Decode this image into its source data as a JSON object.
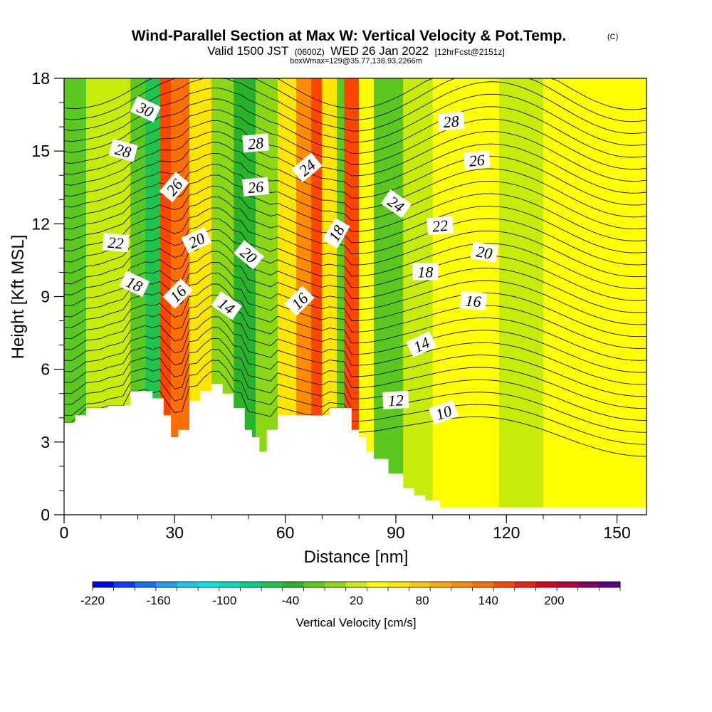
{
  "title": {
    "main": "Wind-Parallel Section at Max W: Vertical Velocity & Pot.Temp.",
    "copyright": "(C)",
    "valid_prefix": "Valid 1500 JST",
    "valid_zulu": "(0600Z)",
    "valid_date": "WED 26 Jan 2022",
    "forecast": "[12hrFcst@2151z]",
    "box": "boxWmax=129@35.77,138.93,2266m"
  },
  "colors": {
    "terrain": "#ffffff",
    "contour": "#111111",
    "background": "#ffffff"
  },
  "chart_data": {
    "type": "heatmap",
    "xlabel": "Distance [nm]",
    "ylabel": "Height [Kft MSL]",
    "xlim": [
      0,
      158
    ],
    "ylim": [
      0,
      18
    ],
    "x_ticks": [
      0,
      30,
      60,
      90,
      120,
      150
    ],
    "y_ticks": [
      0,
      3,
      6,
      9,
      12,
      15,
      18
    ],
    "colorbar": {
      "title": "Vertical Velocity [cm/s]",
      "tick_labels": [
        -220,
        -160,
        -100,
        -40,
        20,
        80,
        140,
        200
      ],
      "bins": [
        -220,
        -200,
        -180,
        -160,
        -140,
        -120,
        -100,
        -80,
        -60,
        -40,
        -20,
        0,
        20,
        40,
        60,
        80,
        100,
        120,
        140,
        160,
        180,
        200,
        220,
        240
      ],
      "colors": [
        "#0000ee",
        "#0a3cf0",
        "#1470f0",
        "#1ea0f0",
        "#14c8f0",
        "#00e6e6",
        "#00dcb4",
        "#00d28c",
        "#1ec350",
        "#28b428",
        "#5ac81e",
        "#8cd714",
        "#c8eb0a",
        "#ffff00",
        "#ffe600",
        "#ffc800",
        "#ffaa00",
        "#ff8c00",
        "#ff6e00",
        "#ff4600",
        "#f01e0a",
        "#d7001e",
        "#b4003c",
        "#820064",
        "#5a0082"
      ]
    },
    "vertical_velocity_bands_cm_s": [
      {
        "x": [
          0,
          6
        ],
        "w": -40
      },
      {
        "x": [
          6,
          18
        ],
        "w": 0
      },
      {
        "x": [
          18,
          22
        ],
        "w": -40
      },
      {
        "x": [
          22,
          26
        ],
        "w": -80
      },
      {
        "x": [
          26,
          29
        ],
        "w": 140
      },
      {
        "x": [
          29,
          34
        ],
        "w": 120
      },
      {
        "x": [
          34,
          40
        ],
        "w": 40
      },
      {
        "x": [
          40,
          46
        ],
        "w": -20
      },
      {
        "x": [
          46,
          52
        ],
        "w": -60
      },
      {
        "x": [
          52,
          58
        ],
        "w": -20
      },
      {
        "x": [
          58,
          63
        ],
        "w": 40
      },
      {
        "x": [
          63,
          67
        ],
        "w": 100
      },
      {
        "x": [
          67,
          70
        ],
        "w": 140
      },
      {
        "x": [
          70,
          74
        ],
        "w": 40
      },
      {
        "x": [
          74,
          76
        ],
        "w": -40
      },
      {
        "x": [
          76,
          80
        ],
        "w": 140
      },
      {
        "x": [
          80,
          84
        ],
        "w": 20
      },
      {
        "x": [
          84,
          92
        ],
        "w": -40
      },
      {
        "x": [
          92,
          100
        ],
        "w": 0
      },
      {
        "x": [
          100,
          118
        ],
        "w": 20
      },
      {
        "x": [
          118,
          130
        ],
        "w": 0
      },
      {
        "x": [
          130,
          158
        ],
        "w": 20
      }
    ],
    "terrain_kft": [
      {
        "x": 0,
        "h": 3.8
      },
      {
        "x": 3,
        "h": 4.1
      },
      {
        "x": 6,
        "h": 4.4
      },
      {
        "x": 12,
        "h": 4.5
      },
      {
        "x": 18,
        "h": 5.1
      },
      {
        "x": 24,
        "h": 4.8
      },
      {
        "x": 27,
        "h": 4.1
      },
      {
        "x": 29,
        "h": 3.2
      },
      {
        "x": 31,
        "h": 3.5
      },
      {
        "x": 34,
        "h": 4.7
      },
      {
        "x": 37,
        "h": 5.1
      },
      {
        "x": 40,
        "h": 5.4
      },
      {
        "x": 43,
        "h": 5.0
      },
      {
        "x": 46,
        "h": 4.4
      },
      {
        "x": 49,
        "h": 3.5
      },
      {
        "x": 51,
        "h": 3.2
      },
      {
        "x": 53,
        "h": 2.6
      },
      {
        "x": 55,
        "h": 3.5
      },
      {
        "x": 58,
        "h": 4.1
      },
      {
        "x": 68,
        "h": 4.1
      },
      {
        "x": 72,
        "h": 4.4
      },
      {
        "x": 76,
        "h": 4.4
      },
      {
        "x": 78,
        "h": 3.5
      },
      {
        "x": 80,
        "h": 3.2
      },
      {
        "x": 82,
        "h": 2.6
      },
      {
        "x": 84,
        "h": 2.3
      },
      {
        "x": 88,
        "h": 1.7
      },
      {
        "x": 92,
        "h": 1.1
      },
      {
        "x": 95,
        "h": 0.8
      },
      {
        "x": 98,
        "h": 0.6
      },
      {
        "x": 102,
        "h": 0.3
      },
      {
        "x": 158,
        "h": 0.3
      }
    ],
    "potential_temperature_contour_labels": [
      {
        "value": 30,
        "x": 22,
        "y": 16.7,
        "angle": 25
      },
      {
        "value": 28,
        "x": 16,
        "y": 15.0,
        "angle": 15
      },
      {
        "value": 22,
        "x": 14,
        "y": 11.2,
        "angle": 5
      },
      {
        "value": 18,
        "x": 19,
        "y": 9.5,
        "angle": 25
      },
      {
        "value": 26,
        "x": 30,
        "y": 13.5,
        "angle": -50
      },
      {
        "value": 20,
        "x": 36,
        "y": 11.3,
        "angle": -25
      },
      {
        "value": 16,
        "x": 31,
        "y": 9.1,
        "angle": -45
      },
      {
        "value": 14,
        "x": 44,
        "y": 8.6,
        "angle": 35
      },
      {
        "value": 28,
        "x": 52,
        "y": 15.3,
        "angle": -5
      },
      {
        "value": 26,
        "x": 52,
        "y": 13.5,
        "angle": -5
      },
      {
        "value": 20,
        "x": 50,
        "y": 10.7,
        "angle": 40
      },
      {
        "value": 24,
        "x": 66,
        "y": 14.3,
        "angle": -40
      },
      {
        "value": 18,
        "x": 74,
        "y": 11.6,
        "angle": -60
      },
      {
        "value": 16,
        "x": 64,
        "y": 8.8,
        "angle": -45
      },
      {
        "value": 24,
        "x": 90,
        "y": 12.8,
        "angle": 35
      },
      {
        "value": 28,
        "x": 105,
        "y": 16.2,
        "angle": -5
      },
      {
        "value": 26,
        "x": 112,
        "y": 14.6,
        "angle": -5
      },
      {
        "value": 22,
        "x": 102,
        "y": 11.9,
        "angle": -5
      },
      {
        "value": 20,
        "x": 114,
        "y": 10.8,
        "angle": 10
      },
      {
        "value": 18,
        "x": 98,
        "y": 10.0,
        "angle": 0
      },
      {
        "value": 16,
        "x": 111,
        "y": 8.8,
        "angle": 5
      },
      {
        "value": 14,
        "x": 97,
        "y": 7.0,
        "angle": -25
      },
      {
        "value": 12,
        "x": 90,
        "y": 4.7,
        "angle": -3
      },
      {
        "value": 10,
        "x": 103,
        "y": 4.2,
        "angle": -20
      }
    ]
  }
}
